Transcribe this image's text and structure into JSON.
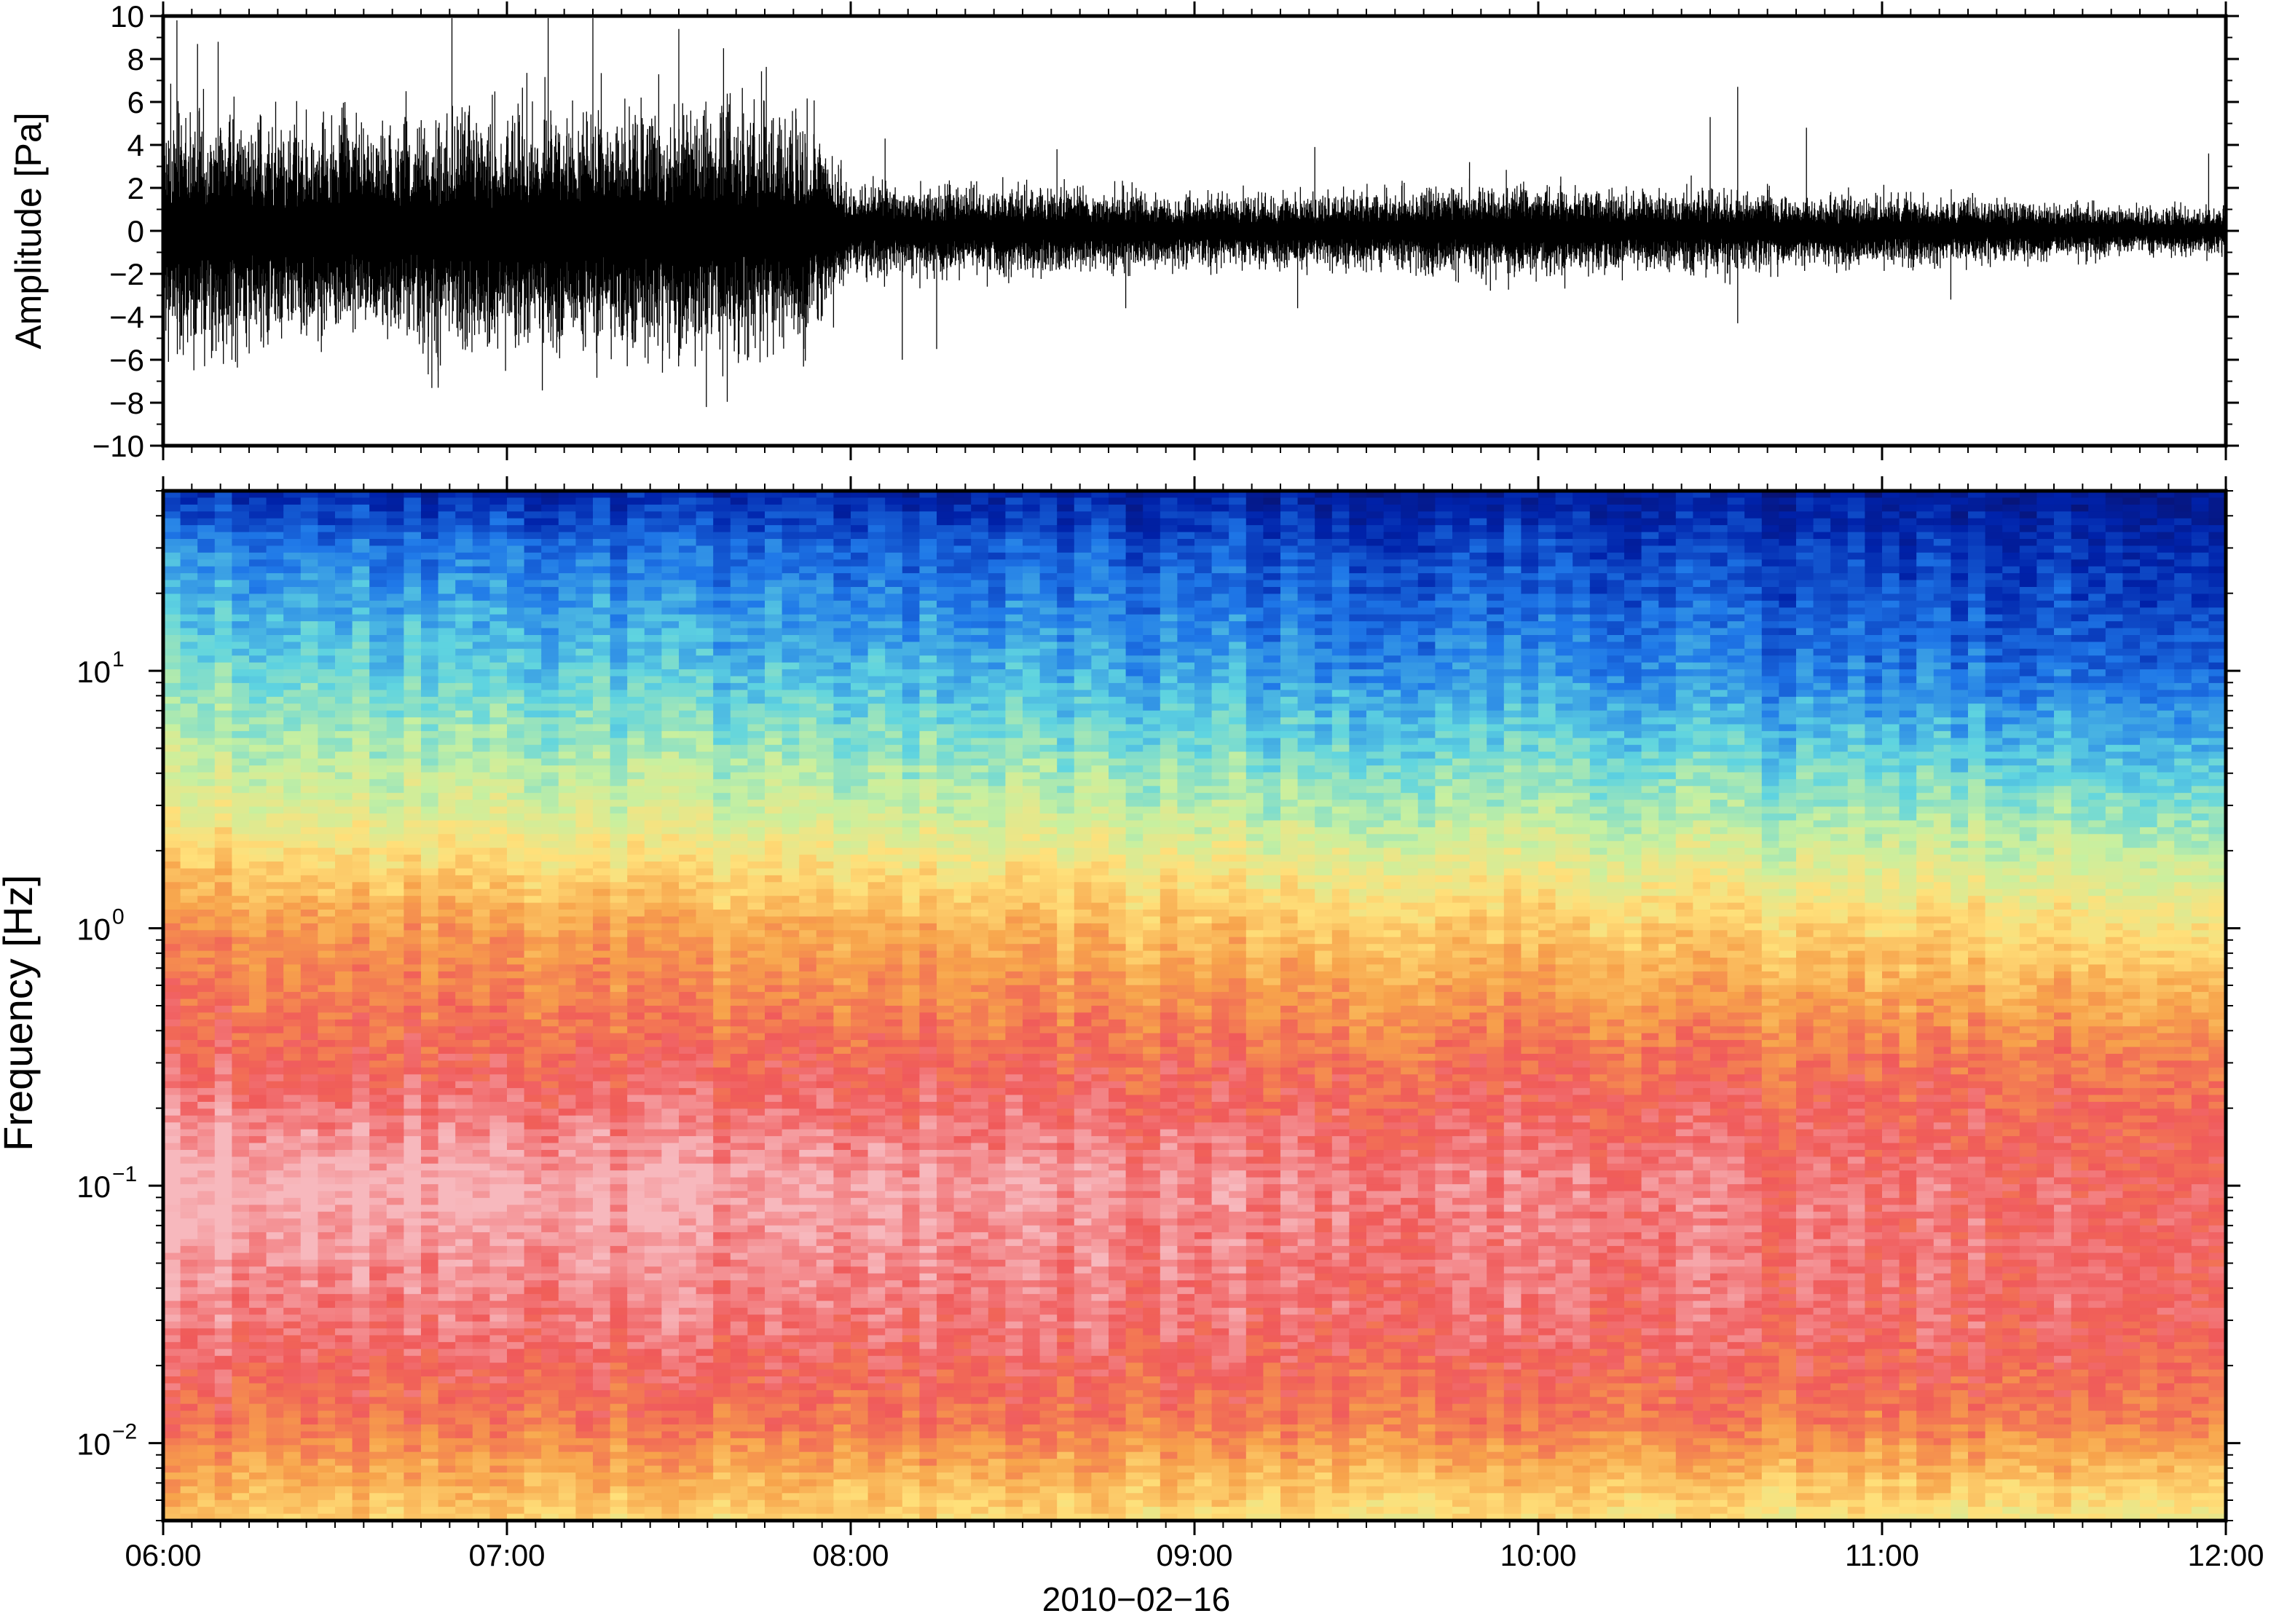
{
  "chart_data": [
    {
      "type": "line",
      "panel": "waveform",
      "ylabel": "Amplitude [Pa]",
      "ylim": [
        -10,
        10
      ],
      "yticks": [
        10,
        8,
        6,
        4,
        2,
        0,
        -2,
        -4,
        -6,
        -8,
        -10
      ],
      "ytick_labels": [
        "10",
        "8",
        "6",
        "4",
        "2",
        "0",
        "−2",
        "−4",
        "−6",
        "−8",
        "−10"
      ],
      "xlim": [
        "06:00",
        "12:00"
      ],
      "envelope": {
        "time_hours": [
          6.0,
          6.25,
          6.5,
          6.75,
          7.0,
          7.25,
          7.5,
          7.75,
          7.9,
          8.0,
          8.25,
          8.5,
          8.75,
          9.0,
          9.25,
          9.5,
          9.75,
          10.0,
          10.25,
          10.5,
          10.75,
          11.0,
          11.25,
          11.5,
          11.75,
          12.0
        ],
        "max_pa": [
          3.0,
          2.8,
          2.7,
          2.9,
          3.0,
          3.1,
          3.2,
          3.0,
          2.6,
          1.2,
          1.1,
          1.1,
          1.0,
          0.9,
          0.9,
          1.0,
          1.1,
          1.2,
          1.0,
          1.0,
          0.9,
          0.9,
          0.8,
          0.7,
          0.6,
          0.6
        ]
      },
      "spikes": [
        {
          "t": 6.04,
          "y": 9.8
        },
        {
          "t": 6.1,
          "y": 8.7
        },
        {
          "t": 6.16,
          "y": 8.8
        },
        {
          "t": 6.84,
          "y": 9.9
        },
        {
          "t": 7.12,
          "y": 9.9
        },
        {
          "t": 7.25,
          "y": 9.9
        },
        {
          "t": 7.5,
          "y": 9.4
        },
        {
          "t": 7.63,
          "y": 8.5
        },
        {
          "t": 8.1,
          "y": 4.3
        },
        {
          "t": 8.6,
          "y": 3.8
        },
        {
          "t": 9.35,
          "y": 3.9
        },
        {
          "t": 9.8,
          "y": 3.2
        },
        {
          "t": 10.5,
          "y": 5.3
        },
        {
          "t": 10.58,
          "y": 6.7
        },
        {
          "t": 10.78,
          "y": 4.8
        },
        {
          "t": 11.95,
          "y": 3.6
        },
        {
          "t": 6.2,
          "y": -6.0
        },
        {
          "t": 6.8,
          "y": -7.3
        },
        {
          "t": 7.35,
          "y": -6.3
        },
        {
          "t": 7.58,
          "y": -8.2
        },
        {
          "t": 7.95,
          "y": -4.5
        },
        {
          "t": 8.15,
          "y": -6.0
        },
        {
          "t": 8.25,
          "y": -5.5
        },
        {
          "t": 8.8,
          "y": -3.6
        },
        {
          "t": 9.3,
          "y": -3.6
        },
        {
          "t": 10.58,
          "y": -4.3
        },
        {
          "t": 11.2,
          "y": -3.2
        }
      ]
    },
    {
      "type": "heatmap",
      "panel": "spectrogram",
      "ylabel": "Frequency [Hz]",
      "yscale": "log",
      "ylim": [
        0.005,
        50
      ],
      "yticks": [
        10,
        1,
        0.1,
        0.01
      ],
      "ytick_base": "10",
      "ytick_exponents": [
        "1",
        "0",
        "−1",
        "−2"
      ],
      "xlim": [
        "06:00",
        "12:00"
      ],
      "xlabel": "2010−02−16",
      "xtick_labels": [
        "06:00",
        "07:00",
        "08:00",
        "09:00",
        "10:00",
        "11:00",
        "12:00"
      ],
      "xticks_hours": [
        6,
        7,
        8,
        9,
        10,
        11,
        12
      ],
      "colormap": [
        "#0a0f66",
        "#0022aa",
        "#1f78e8",
        "#5fd4e0",
        "#c7f0a0",
        "#ffe07a",
        "#f7a34b",
        "#f05a5a",
        "#f7b8bd"
      ],
      "power_bands": {
        "note_hz": [
          0.005,
          0.012,
          0.03,
          0.1,
          0.3,
          1,
          3,
          10,
          30,
          50
        ],
        "band_color_index_early": [
          5.4,
          6.6,
          7.4,
          8.2,
          7.0,
          6.3,
          4.5,
          3.3,
          2.2,
          1.1
        ],
        "band_color_index_late": [
          4.7,
          6.5,
          7.1,
          7.1,
          6.6,
          5.0,
          3.4,
          1.8,
          1.1,
          0.6
        ]
      }
    }
  ]
}
